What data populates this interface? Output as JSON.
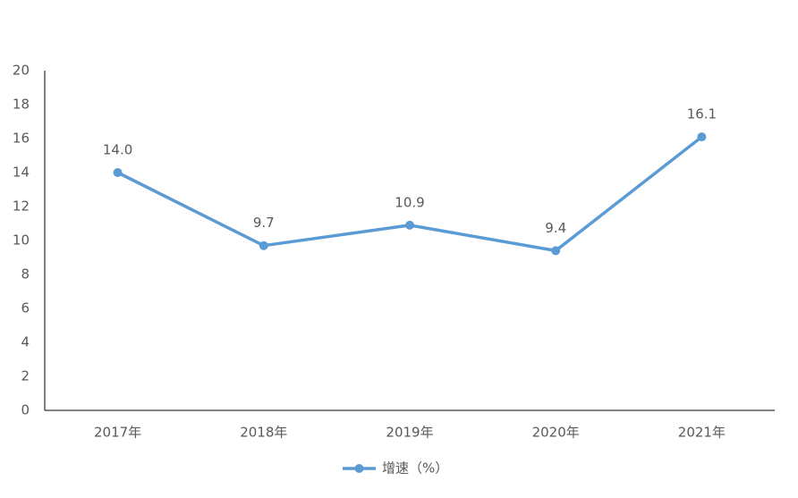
{
  "chart_data": {
    "type": "line",
    "categories": [
      "2017年",
      "2018年",
      "2019年",
      "2020年",
      "2021年"
    ],
    "series": [
      {
        "name": "增速（%）",
        "color": "#5b9bd5",
        "values": [
          14.0,
          9.7,
          10.9,
          9.4,
          16.1
        ],
        "value_labels": [
          "14.0",
          "9.7",
          "10.9",
          "9.4",
          "16.1"
        ]
      }
    ],
    "ylim": [
      0,
      20
    ],
    "yticks": [
      0,
      2,
      4,
      6,
      8,
      10,
      12,
      14,
      16,
      18,
      20
    ],
    "grid": false,
    "legend": "bottom"
  }
}
